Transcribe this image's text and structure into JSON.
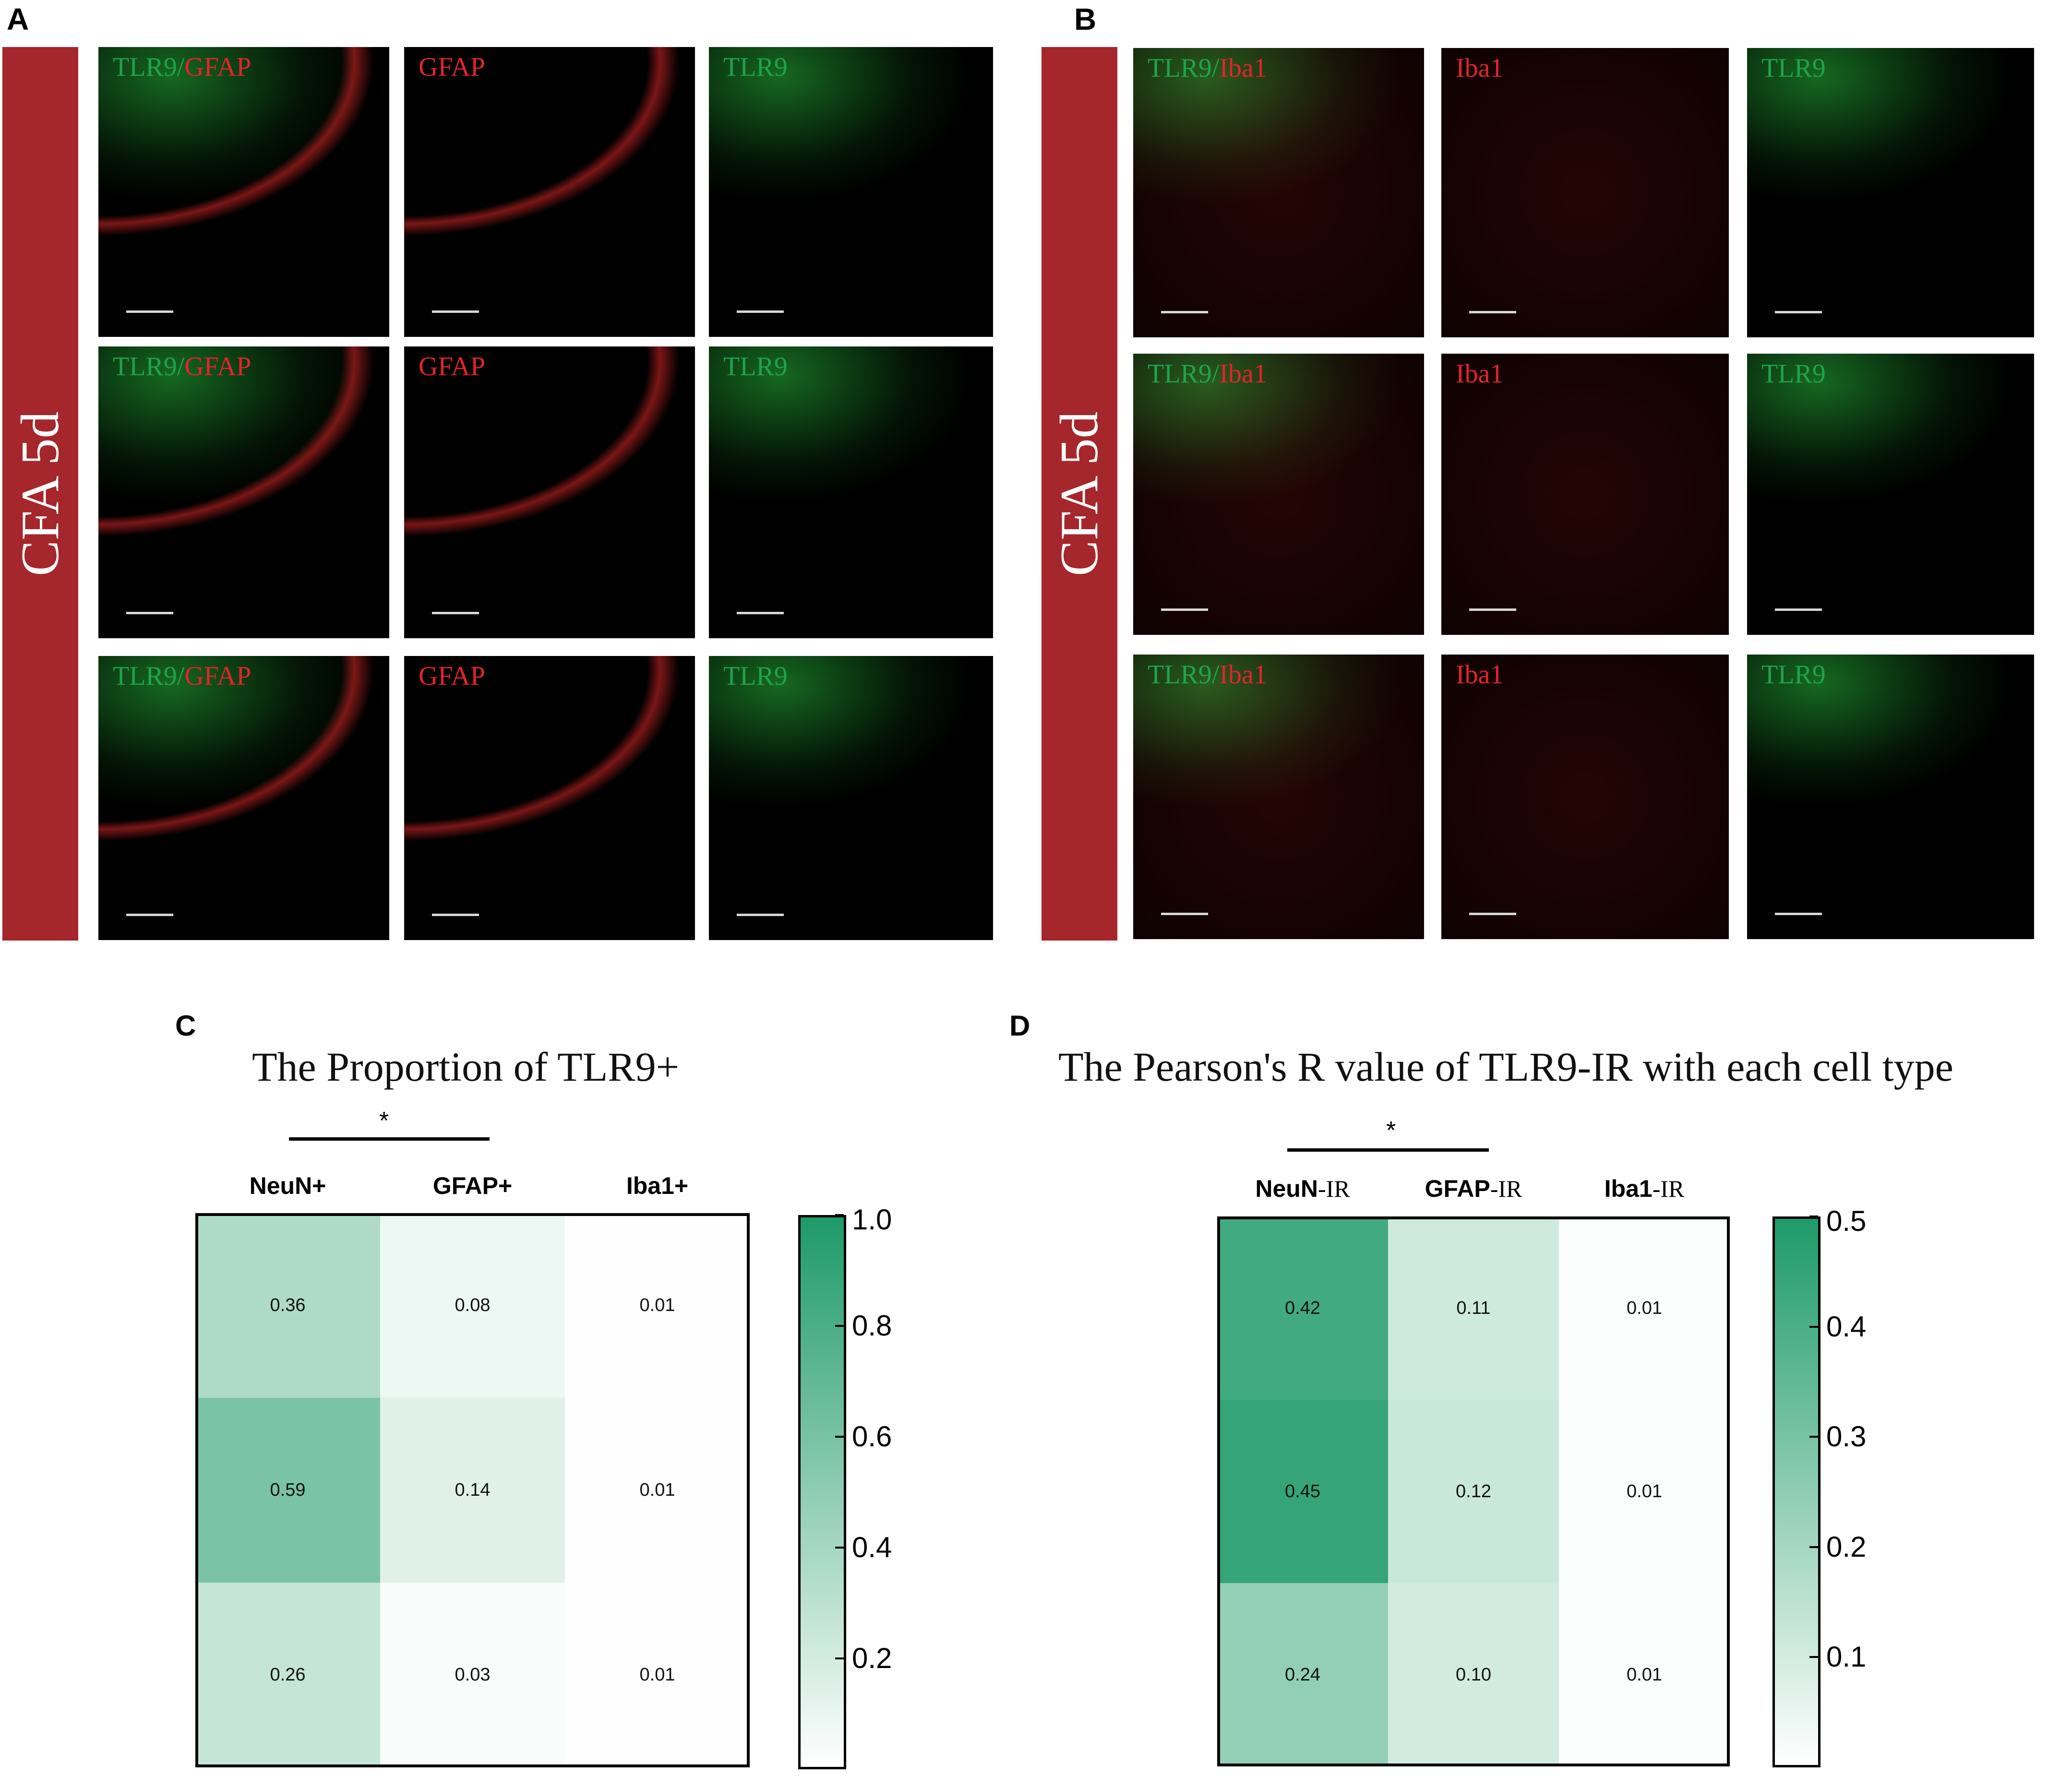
{
  "panels": {
    "A": {
      "letter": "A",
      "condition": "CFA 5d",
      "rows": [
        [
          {
            "label_green": "TLR9",
            "sep": "/",
            "label_red": "GFAP"
          },
          {
            "label_green": "",
            "sep": "",
            "label_red": "GFAP"
          },
          {
            "label_green": "TLR9",
            "sep": "",
            "label_red": ""
          }
        ],
        [
          {
            "label_green": "TLR9",
            "sep": "/",
            "label_red": "GFAP"
          },
          {
            "label_green": "",
            "sep": "",
            "label_red": "GFAP"
          },
          {
            "label_green": "TLR9",
            "sep": "",
            "label_red": ""
          }
        ],
        [
          {
            "label_green": "TLR9",
            "sep": "/",
            "label_red": "GFAP"
          },
          {
            "label_green": "",
            "sep": "",
            "label_red": "GFAP"
          },
          {
            "label_green": "TLR9",
            "sep": "",
            "label_red": ""
          }
        ]
      ]
    },
    "B": {
      "letter": "B",
      "condition": "CFA 5d",
      "rows": [
        [
          {
            "label_green": "TLR9",
            "sep": "/",
            "label_red": "Iba1"
          },
          {
            "label_green": "",
            "sep": "",
            "label_red": "Iba1"
          },
          {
            "label_green": "TLR9",
            "sep": "",
            "label_red": ""
          }
        ],
        [
          {
            "label_green": "TLR9",
            "sep": "/",
            "label_red": "Iba1"
          },
          {
            "label_green": "",
            "sep": "",
            "label_red": "Iba1"
          },
          {
            "label_green": "TLR9",
            "sep": "",
            "label_red": ""
          }
        ],
        [
          {
            "label_green": "TLR9",
            "sep": "/",
            "label_red": "Iba1"
          },
          {
            "label_green": "",
            "sep": "",
            "label_red": "Iba1"
          },
          {
            "label_green": "TLR9",
            "sep": "",
            "label_red": ""
          }
        ]
      ]
    },
    "C": {
      "letter": "C",
      "title": "The Proportion of TLR9+",
      "significance": "*",
      "columns": [
        {
          "bold": "NeuN+",
          "suffix": ""
        },
        {
          "bold": "GFAP+",
          "suffix": ""
        },
        {
          "bold": "Iba1+",
          "suffix": ""
        }
      ],
      "cells": [
        [
          "0.36",
          "0.08",
          "0.01"
        ],
        [
          "0.59",
          "0.14",
          "0.01"
        ],
        [
          "0.26",
          "0.03",
          "0.01"
        ]
      ],
      "values": [
        [
          0.36,
          0.08,
          0.01
        ],
        [
          0.59,
          0.14,
          0.01
        ],
        [
          0.26,
          0.03,
          0.01
        ]
      ],
      "scale_max": 1.0,
      "colorbar_ticks": [
        "1.0",
        "0.8",
        "0.6",
        "0.4",
        "0.2"
      ],
      "colorbar_tick_values": [
        1.0,
        0.8,
        0.6,
        0.4,
        0.2
      ]
    },
    "D": {
      "letter": "D",
      "title": "The Pearson's R value of TLR9-IR with each cell type",
      "significance": "*",
      "columns": [
        {
          "bold": "NeuN",
          "suffix": "-IR"
        },
        {
          "bold": "GFAP",
          "suffix": "-IR"
        },
        {
          "bold": "Iba1",
          "suffix": "-IR"
        }
      ],
      "cells": [
        [
          "0.42",
          "0.11",
          "0.01"
        ],
        [
          "0.45",
          "0.12",
          "0.01"
        ],
        [
          "0.24",
          "0.10",
          "0.01"
        ]
      ],
      "values": [
        [
          0.42,
          0.11,
          0.01
        ],
        [
          0.45,
          0.12,
          0.01
        ],
        [
          0.24,
          0.1,
          0.01
        ]
      ],
      "scale_max": 0.5,
      "colorbar_ticks": [
        "0.5",
        "0.4",
        "0.3",
        "0.2",
        "0.1"
      ],
      "colorbar_tick_values": [
        0.5,
        0.4,
        0.3,
        0.2,
        0.1
      ]
    }
  },
  "colors": {
    "heat_high": "#1e9a68",
    "heat_low": "#ffffff",
    "condition_bar": "#a5262b",
    "label_green": "#1fa34a",
    "label_red": "#e1242b"
  }
}
